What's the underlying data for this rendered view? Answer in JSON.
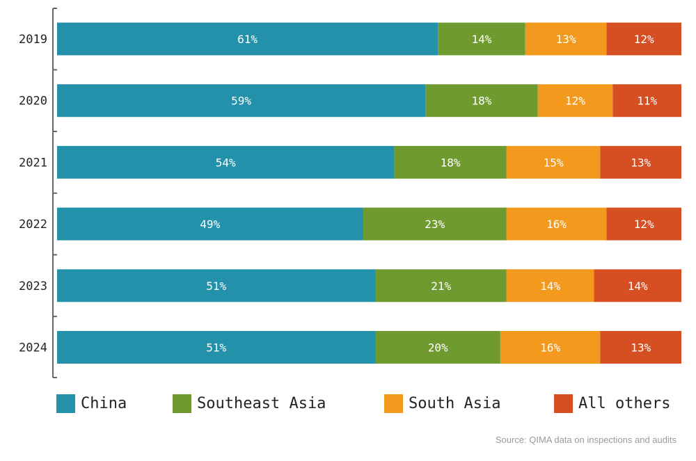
{
  "chart_data": {
    "type": "bar",
    "orientation": "horizontal",
    "stacked": true,
    "normalized_percent": true,
    "categories": [
      "2019",
      "2020",
      "2021",
      "2022",
      "2023",
      "2024"
    ],
    "series": [
      {
        "name": "China",
        "color": "#2391aa",
        "values": [
          61,
          59,
          54,
          49,
          51,
          51
        ],
        "labels": [
          "61%",
          "59%",
          "54%",
          "49%",
          "51%",
          "51%"
        ]
      },
      {
        "name": "Southeast Asia",
        "color": "#6f9a2f",
        "values": [
          14,
          18,
          18,
          23,
          21,
          20
        ],
        "labels": [
          "14%",
          "18%",
          "18%",
          "23%",
          "21%",
          "20%"
        ]
      },
      {
        "name": "South Asia",
        "color": "#f39a1e",
        "values": [
          13,
          12,
          15,
          16,
          14,
          16
        ],
        "labels": [
          "13%",
          "12%",
          "15%",
          "16%",
          "14%",
          "16%"
        ]
      },
      {
        "name": "All others",
        "color": "#d64f22",
        "values": [
          12,
          11,
          13,
          12,
          14,
          13
        ],
        "labels": [
          "12%",
          "11%",
          "13%",
          "12%",
          "14%",
          "13%"
        ]
      }
    ],
    "title": "",
    "xlabel": "",
    "ylabel": "",
    "xlim": [
      0,
      100
    ],
    "grid": false,
    "legend_position": "bottom"
  },
  "source_note": "Source: QIMA data on inspections and audits"
}
